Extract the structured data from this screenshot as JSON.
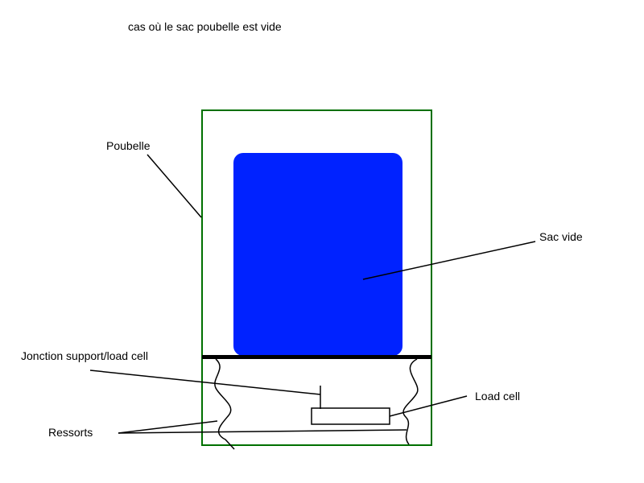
{
  "title": "cas où le sac poubelle est vide",
  "labels": {
    "poubelle": "Poubelle",
    "sac_vide": "Sac vide",
    "jonction": "Jonction support/load cell",
    "load_cell": "Load cell",
    "ressorts": "Ressorts"
  },
  "colors": {
    "bin_outline": "#007000",
    "bag_fill": "#0022ff",
    "support": "#000000",
    "lines": "#000000"
  }
}
